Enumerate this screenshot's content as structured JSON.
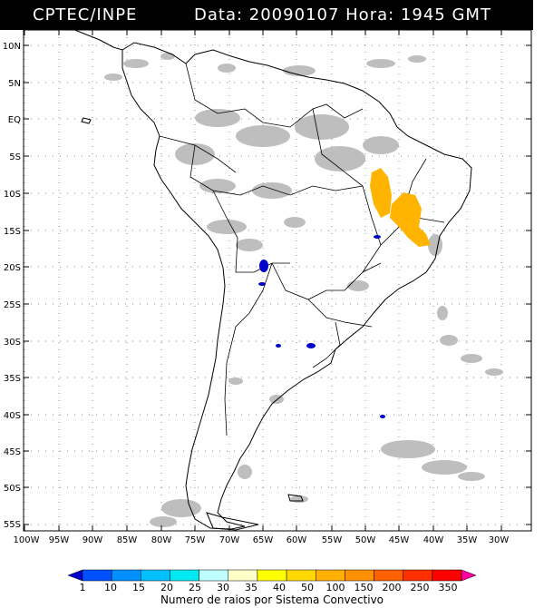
{
  "header": {
    "org": "CPTEC/INPE",
    "date_label": "Data:",
    "date": "20090107",
    "time_label": "Hora:",
    "time": "1945",
    "tz": "GMT"
  },
  "axes": {
    "lat_labels": [
      "10N",
      "5N",
      "EQ",
      "5S",
      "10S",
      "15S",
      "20S",
      "25S",
      "30S",
      "35S",
      "40S",
      "45S",
      "50S",
      "55S"
    ],
    "lon_labels": [
      "100W",
      "95W",
      "90W",
      "85W",
      "80W",
      "75W",
      "70W",
      "65W",
      "60W",
      "55W",
      "50W",
      "45W",
      "40W",
      "35W",
      "30W"
    ]
  },
  "legend": {
    "caption": "Numero de raios por Sistema Convectivo",
    "ticks": [
      "1",
      "10",
      "15",
      "20",
      "25",
      "30",
      "35",
      "40",
      "50",
      "100",
      "150",
      "200",
      "250",
      "350"
    ],
    "colors": [
      "#0000cc",
      "#0050ff",
      "#0090ff",
      "#00c0ff",
      "#00e8f0",
      "#c0ffff",
      "#ffffc8",
      "#ffff00",
      "#ffd800",
      "#ffb000",
      "#ff9000",
      "#ff6000",
      "#ff3000",
      "#ff0000",
      "#ff00a0"
    ]
  },
  "colors": {
    "cloud_gray": "#b8b8b8",
    "storm_blue": "#0000cc",
    "storm_orange": "#ffb400"
  }
}
